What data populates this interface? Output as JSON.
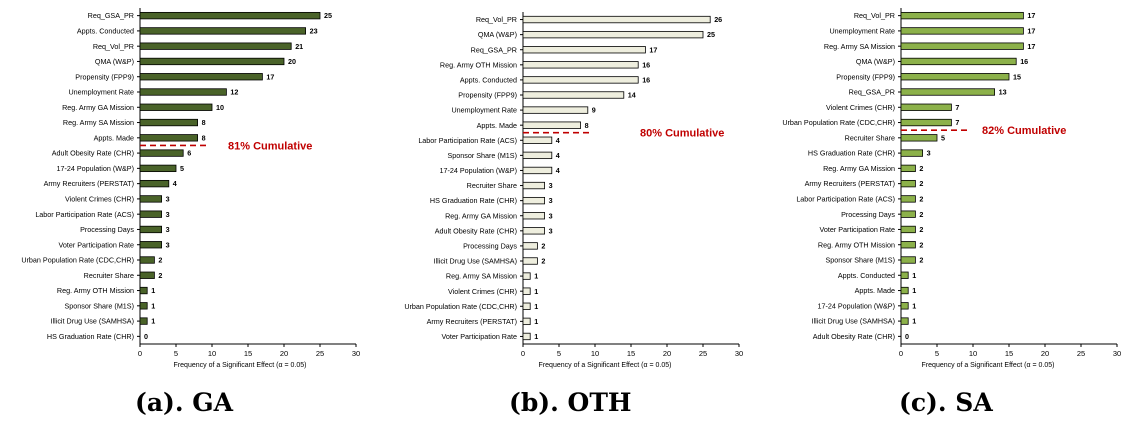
{
  "chart_data": [
    {
      "type": "bar",
      "orientation": "horizontal",
      "caption": "(a). GA",
      "xlabel": "Frequency of a Significant Effect (α = 0.05)",
      "xlim": [
        0,
        30
      ],
      "xticks": [
        0,
        5,
        10,
        15,
        20,
        25,
        30
      ],
      "bar_color": "#4a6329",
      "categories": [
        "Req_GSA_PR",
        "Appts. Conducted",
        "Req_Vol_PR",
        "QMA (W&P)",
        "Propensity (FPP9)",
        "Unemployment Rate",
        "Reg. Army GA Mission",
        "Reg. Army SA Mission",
        "Appts. Made",
        "Adult Obesity Rate (CHR)",
        "17-24 Population (W&P)",
        "Army Recruiters (PERSTAT)",
        "Violent Crimes (CHR)",
        "Labor Participation Rate (ACS)",
        "Processing Days",
        "Voter Participation Rate",
        "Urban Population Rate (CDC,CHR)",
        "Recruiter Share",
        "Reg. Army OTH Mission",
        "Sponsor Share (M1S)",
        "Illicit Drug Use (SAMHSA)",
        "HS Graduation Rate (CHR)"
      ],
      "values": [
        25,
        23,
        21,
        20,
        17,
        12,
        10,
        8,
        8,
        6,
        5,
        4,
        3,
        3,
        3,
        3,
        2,
        2,
        1,
        1,
        1,
        0
      ],
      "cutoff_label": "81% Cumulative",
      "cutoff_after_index": 8,
      "cutoff_color": "#c00000"
    },
    {
      "type": "bar",
      "orientation": "horizontal",
      "caption": "(b). OTH",
      "xlabel": "Frequency of a Significant Effect (α = 0.05)",
      "xlim": [
        0,
        30
      ],
      "xticks": [
        0,
        5,
        10,
        15,
        20,
        25,
        30
      ],
      "bar_color": "#eeeede",
      "categories": [
        "Req_Vol_PR",
        "QMA (W&P)",
        "Req_GSA_PR",
        "Reg. Army OTH Mission",
        "Appts. Conducted",
        "Propensity (FPP9)",
        "Unemployment Rate",
        "Appts. Made",
        "Labor Participation Rate (ACS)",
        "Sponsor Share (M1S)",
        "17-24 Population (W&P)",
        "Recruiter Share",
        "HS Graduation Rate (CHR)",
        "Reg. Army GA Mission",
        "Adult Obesity Rate (CHR)",
        "Processing Days",
        "Illicit Drug Use (SAMHSA)",
        "Reg. Army SA Mission",
        "Violent Crimes (CHR)",
        "Urban Population Rate (CDC,CHR)",
        "Army Recruiters (PERSTAT)",
        "Voter Participation Rate"
      ],
      "values": [
        26,
        25,
        17,
        16,
        16,
        14,
        9,
        8,
        4,
        4,
        4,
        3,
        3,
        3,
        3,
        2,
        2,
        1,
        1,
        1,
        1,
        1
      ],
      "cutoff_label": "80% Cumulative",
      "cutoff_after_index": 7,
      "cutoff_color": "#c00000"
    },
    {
      "type": "bar",
      "orientation": "horizontal",
      "caption": "(c). SA",
      "xlabel": "Frequency of a Significant Effect (α = 0.05)",
      "xlim": [
        0,
        30
      ],
      "xticks": [
        0,
        5,
        10,
        15,
        20,
        25,
        30
      ],
      "bar_color": "#8cb14a",
      "categories": [
        "Req_Vol_PR",
        "Unemployment Rate",
        "Reg. Army SA Mission",
        "QMA (W&P)",
        "Propensity (FPP9)",
        "Req_GSA_PR",
        "Violent Crimes (CHR)",
        "Urban Population Rate (CDC,CHR)",
        "Recruiter Share",
        "HS Graduation Rate (CHR)",
        "Reg. Army GA Mission",
        "Army Recruiters (PERSTAT)",
        "Labor Participation Rate (ACS)",
        "Processing Days",
        "Voter Participation Rate",
        "Reg. Army OTH Mission",
        "Sponsor Share (M1S)",
        "Appts. Conducted",
        "Appts. Made",
        "17-24 Population (W&P)",
        "Illicit Drug Use (SAMHSA)",
        "Adult Obesity Rate (CHR)"
      ],
      "values": [
        17,
        17,
        17,
        16,
        15,
        13,
        7,
        7,
        5,
        3,
        2,
        2,
        2,
        2,
        2,
        2,
        2,
        1,
        1,
        1,
        1,
        0
      ],
      "cutoff_label": "82% Cumulative",
      "cutoff_after_index": 7,
      "cutoff_color": "#c00000"
    }
  ]
}
